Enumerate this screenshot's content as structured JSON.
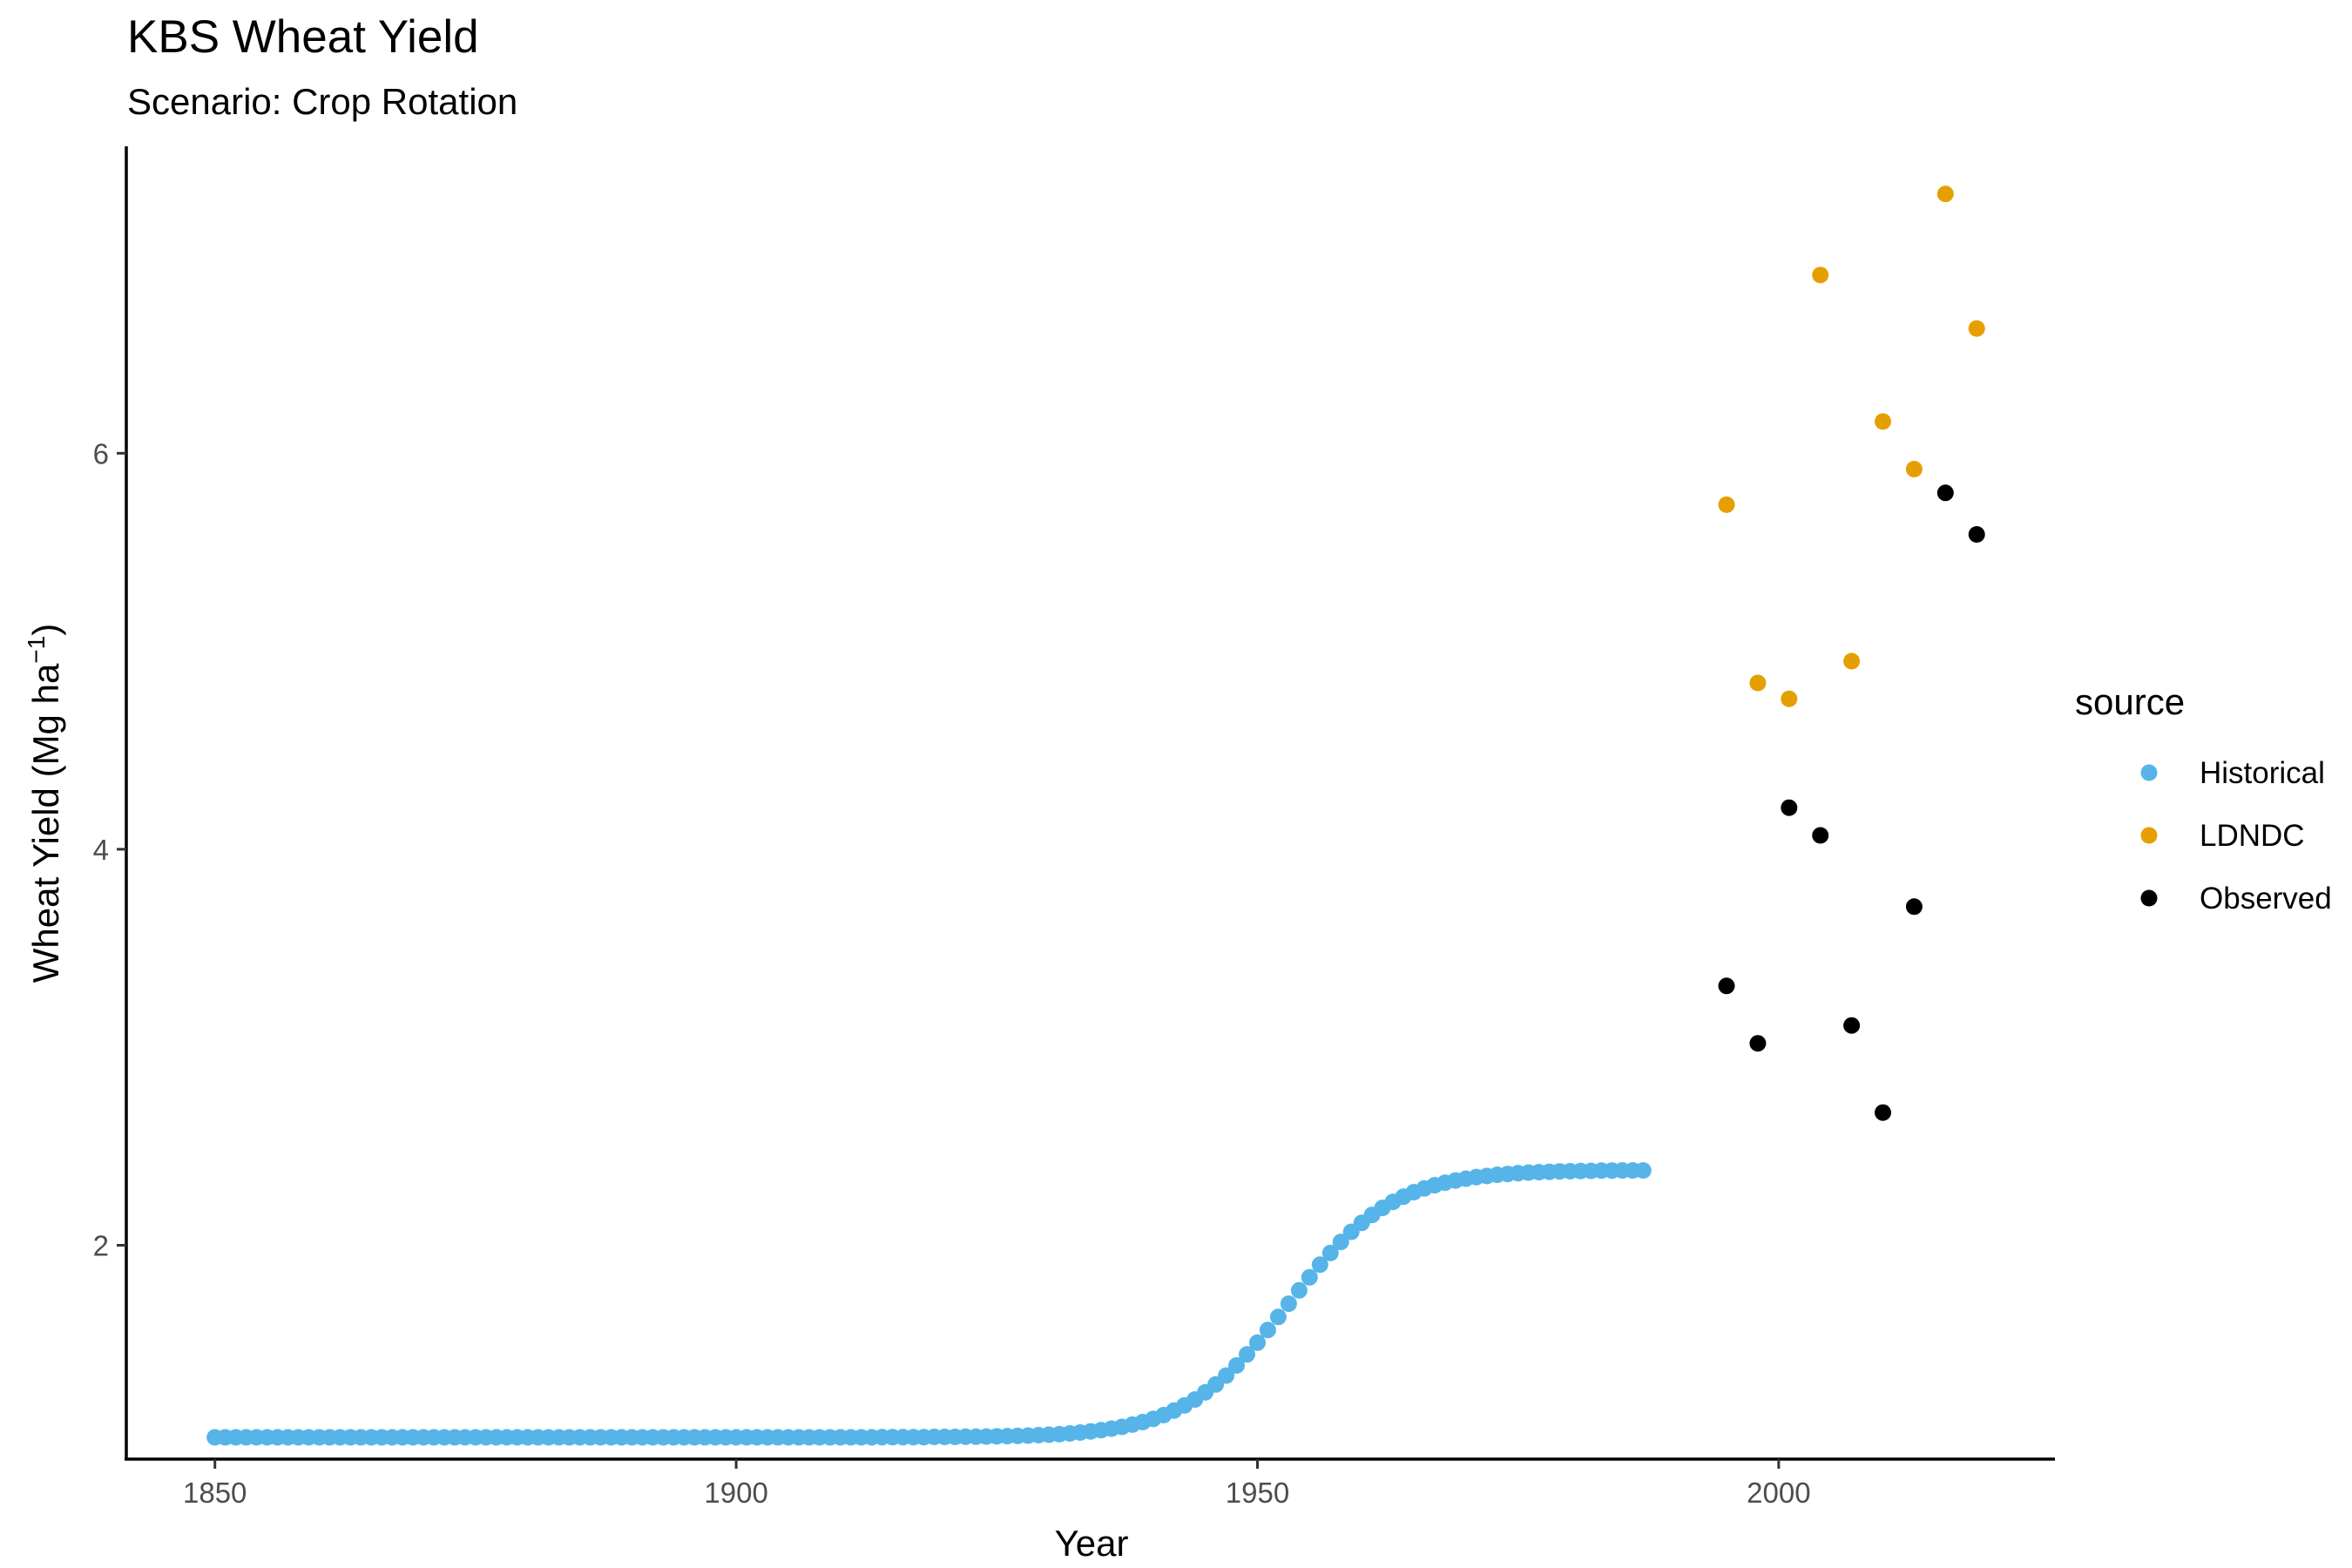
{
  "chart_data": {
    "type": "scatter",
    "title": "KBS Wheat Yield",
    "subtitle": "Scenario: Crop Rotation",
    "xlabel": "Year",
    "ylabel": "Wheat Yield (Mg ha",
    "ylabel_superscript": "−1",
    "ylabel_close": ")",
    "xlim": [
      1841.5,
      2026.5
    ],
    "ylim": [
      0.92,
      7.55
    ],
    "x_ticks": [
      1850,
      1900,
      1950,
      2000
    ],
    "y_ticks": [
      2,
      4,
      6
    ],
    "grid": false,
    "legend_title": "source",
    "legend_position": "right",
    "historical_curve": {
      "x_start": 1850,
      "x_end": 1987,
      "y_base": 1.03,
      "y_plateau": 2.38,
      "midpoint_year": 1953,
      "rate": 0.2
    },
    "series": [
      {
        "name": "Historical",
        "color": "#56B4E9",
        "x": [],
        "y": []
      },
      {
        "name": "LDNDC",
        "color": "#E69F00",
        "x": [
          1995,
          1998,
          2001,
          2004,
          2007,
          2010,
          2013,
          2016,
          2019
        ],
        "y": [
          5.74,
          4.84,
          4.76,
          6.9,
          4.95,
          6.16,
          5.92,
          7.31,
          6.63
        ]
      },
      {
        "name": "Observed",
        "color": "#000000",
        "x": [
          1995,
          1998,
          2001,
          2004,
          2007,
          2010,
          2013,
          2016,
          2019
        ],
        "y": [
          3.31,
          3.02,
          4.21,
          4.07,
          3.11,
          2.67,
          3.71,
          5.8,
          5.59
        ]
      }
    ]
  }
}
